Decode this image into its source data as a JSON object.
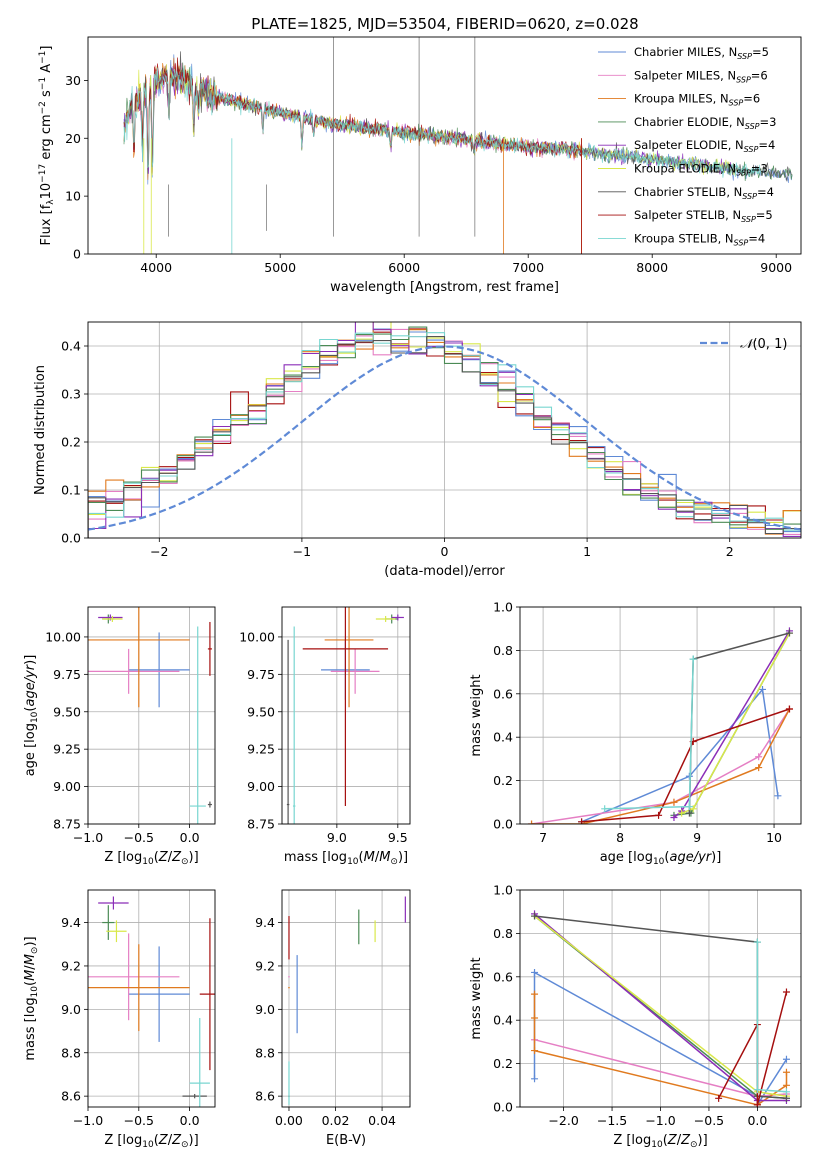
{
  "figure": {
    "title": "PLATE=1825, MJD=53504, FIBERID=0620, z=0.028"
  },
  "colors": {
    "Chabrier MILES": "#5f8ad6",
    "Salpeter MILES": "#e57fc4",
    "Kroupa MILES": "#e07a1f",
    "Chabrier ELODIE": "#4b8b55",
    "Salpeter ELODIE": "#8b2eb8",
    "Kroupa ELODIE": "#d9e84a",
    "Chabrier STELIB": "#555555",
    "Salpeter STELIB": "#a50f0f",
    "Kroupa STELIB": "#78d6d0",
    "normal": "#5f8ad6",
    "grid": "#b0b0b0"
  },
  "legend": [
    {
      "name": "Chabrier MILES",
      "nssp": "5"
    },
    {
      "name": "Salpeter MILES",
      "nssp": "6"
    },
    {
      "name": "Kroupa MILES",
      "nssp": "6"
    },
    {
      "name": "Chabrier ELODIE",
      "nssp": "3"
    },
    {
      "name": "Salpeter ELODIE",
      "nssp": "4"
    },
    {
      "name": "Kroupa ELODIE",
      "nssp": "3"
    },
    {
      "name": "Chabrier STELIB",
      "nssp": "4"
    },
    {
      "name": "Salpeter STELIB",
      "nssp": "5"
    },
    {
      "name": "Kroupa STELIB",
      "nssp": "4"
    }
  ],
  "chart_data": [
    {
      "id": "spectrum",
      "type": "line",
      "xlabel": "wavelength [Angstrom, rest frame]",
      "ylabel": "Flux [f_λ 10^-17 erg cm^-2 s^-1 A^-1]",
      "xlim": [
        3450,
        9200
      ],
      "ylim": [
        0,
        37.5
      ],
      "xticks": [
        4000,
        5000,
        6000,
        7000,
        8000,
        9000
      ],
      "yticks": [
        0,
        10,
        20,
        30
      ],
      "continuum_x": [
        3740,
        3800,
        3900,
        4000,
        4100,
        4200,
        4300,
        4400,
        4500,
        4600,
        4800,
        5000,
        5200,
        5400,
        5600,
        5800,
        6000,
        6200,
        6400,
        6600,
        6800,
        7000,
        7200,
        7400,
        7600,
        7800,
        8000,
        8200,
        8400,
        8600,
        8800,
        9000,
        9150
      ],
      "continuum_y": [
        22,
        26,
        28,
        30,
        31,
        30.5,
        29,
        28,
        27,
        26.5,
        25.5,
        24.5,
        23.5,
        22.5,
        22,
        21.5,
        21,
        20.5,
        20,
        19.5,
        19,
        18.5,
        18.3,
        18,
        17.3,
        16.8,
        16.3,
        15.8,
        15.3,
        14.8,
        14.3,
        13.8,
        13.5
      ]
    },
    {
      "id": "residuals",
      "type": "histogram",
      "xlabel": "(data-model)/error",
      "ylabel": "Normed distribution",
      "xlim": [
        -2.5,
        2.5
      ],
      "ylim": [
        0,
        0.45
      ],
      "xticks": [
        -2,
        -1,
        0,
        1,
        2
      ],
      "yticks": [
        0.0,
        0.1,
        0.2,
        0.3,
        0.4
      ],
      "legend": "N(0,1)",
      "bins": 40
    },
    {
      "id": "age_vs_Z",
      "type": "errorbar",
      "xlabel": "Z [log10(Z/Z⊙)]",
      "ylabel": "age [log10(age/yr)]",
      "xlim": [
        -1.0,
        0.25
      ],
      "ylim": [
        8.75,
        10.2
      ],
      "xticks": [
        -1.0,
        -0.5,
        0.0
      ],
      "yticks": [
        8.75,
        9.0,
        9.25,
        9.5,
        9.75,
        10.0
      ],
      "points": [
        {
          "series": "Chabrier MILES",
          "x": -0.3,
          "xerr": 0.3,
          "y": 9.78,
          "yerr": 0.25
        },
        {
          "series": "Salpeter MILES",
          "x": -0.6,
          "xerr": 0.5,
          "y": 9.77,
          "yerr": 0.15
        },
        {
          "series": "Kroupa MILES",
          "x": -0.5,
          "xerr": 0.5,
          "y": 9.98,
          "yerr": 0.45
        },
        {
          "series": "Chabrier ELODIE",
          "x": -0.8,
          "xerr": 0.06,
          "y": 10.12,
          "yerr": 0.03
        },
        {
          "series": "Salpeter ELODIE",
          "x": -0.78,
          "xerr": 0.12,
          "y": 10.13,
          "yerr": 0.02
        },
        {
          "series": "Kroupa ELODIE",
          "x": -0.76,
          "xerr": 0.1,
          "y": 10.12,
          "yerr": 0.02
        },
        {
          "series": "Chabrier STELIB",
          "x": 0.2,
          "xerr": 0.02,
          "y": 8.88,
          "yerr": 0.02
        },
        {
          "series": "Salpeter STELIB",
          "x": 0.2,
          "xerr": 0.02,
          "y": 9.92,
          "yerr": 0.18
        },
        {
          "series": "Kroupa STELIB",
          "x": 0.08,
          "xerr": 0.08,
          "y": 8.87,
          "yerr": 1.2
        }
      ]
    },
    {
      "id": "age_vs_mass",
      "type": "errorbar",
      "xlabel": "mass [log10(M/M⊙)]",
      "ylabel": "",
      "xlim": [
        8.55,
        9.6
      ],
      "ylim": [
        8.75,
        10.2
      ],
      "xticks": [
        9.0,
        9.5
      ],
      "yticks": [
        8.75,
        9.0,
        9.25,
        9.5,
        9.75,
        10.0
      ],
      "points": [
        {
          "series": "Chabrier MILES",
          "x": 9.07,
          "xerr": 0.2,
          "y": 9.78,
          "yerr": 0.2
        },
        {
          "series": "Salpeter MILES",
          "x": 9.15,
          "xerr": 0.2,
          "y": 9.77,
          "yerr": 0.15
        },
        {
          "series": "Kroupa MILES",
          "x": 9.1,
          "xerr": 0.2,
          "y": 9.98,
          "yerr": 0.45
        },
        {
          "series": "Chabrier ELODIE",
          "x": 9.45,
          "xerr": 0.05,
          "y": 10.12,
          "yerr": 0.03
        },
        {
          "series": "Salpeter ELODIE",
          "x": 9.5,
          "xerr": 0.05,
          "y": 10.13,
          "yerr": 0.02
        },
        {
          "series": "Kroupa ELODIE",
          "x": 9.4,
          "xerr": 0.08,
          "y": 10.12,
          "yerr": 0.02
        },
        {
          "series": "Chabrier STELIB",
          "x": 8.6,
          "xerr": 0.01,
          "y": 8.88,
          "yerr": 1.1
        },
        {
          "series": "Salpeter STELIB",
          "x": 9.07,
          "xerr": 0.35,
          "y": 9.92,
          "yerr": 1.05
        },
        {
          "series": "Kroupa STELIB",
          "x": 8.65,
          "xerr": 0.01,
          "y": 8.87,
          "yerr": 1.2
        }
      ]
    },
    {
      "id": "weight_vs_age",
      "type": "line",
      "xlabel": "age [log10(age/yr)]",
      "ylabel": "mass weight",
      "xlim": [
        6.7,
        10.35
      ],
      "ylim": [
        0,
        1.0
      ],
      "xticks": [
        7,
        8,
        9,
        10
      ],
      "yticks": [
        0.0,
        0.2,
        0.4,
        0.6,
        0.8,
        1.0
      ],
      "series": [
        {
          "name": "Chabrier MILES",
          "x": [
            7.5,
            8.9,
            9.85,
            10.05
          ],
          "y": [
            0.01,
            0.22,
            0.62,
            0.13
          ]
        },
        {
          "name": "Salpeter MILES",
          "x": [
            6.85,
            8.7,
            9.8,
            10.2
          ],
          "y": [
            0.0,
            0.1,
            0.31,
            0.53
          ]
        },
        {
          "name": "Kroupa MILES",
          "x": [
            6.85,
            7.5,
            8.7,
            9.8,
            10.2
          ],
          "y": [
            0.0,
            0.0,
            0.1,
            0.26,
            0.53
          ]
        },
        {
          "name": "Chabrier ELODIE",
          "x": [
            8.7,
            8.92,
            10.2
          ],
          "y": [
            0.04,
            0.05,
            0.88
          ]
        },
        {
          "name": "Salpeter ELODIE",
          "x": [
            8.7,
            8.8,
            10.2
          ],
          "y": [
            0.03,
            0.06,
            0.89
          ]
        },
        {
          "name": "Kroupa ELODIE",
          "x": [
            8.8,
            8.95,
            10.2
          ],
          "y": [
            0.05,
            0.07,
            0.88
          ]
        },
        {
          "name": "Chabrier STELIB",
          "x": [
            8.9,
            8.95,
            10.2
          ],
          "y": [
            0.05,
            0.76,
            0.88
          ]
        },
        {
          "name": "Salpeter STELIB",
          "x": [
            7.5,
            8.5,
            8.95,
            10.2
          ],
          "y": [
            0.01,
            0.04,
            0.38,
            0.53
          ]
        },
        {
          "name": "Kroupa STELIB",
          "x": [
            7.8,
            8.9,
            8.95,
            8.95
          ],
          "y": [
            0.07,
            0.08,
            0.76,
            0.76
          ]
        }
      ]
    },
    {
      "id": "mass_vs_Z",
      "type": "errorbar",
      "xlabel": "Z [log10(Z/Z⊙)]",
      "ylabel": "mass [log10(M/M⊙)]",
      "xlim": [
        -1.0,
        0.25
      ],
      "ylim": [
        8.55,
        9.55
      ],
      "xticks": [
        -1.0,
        -0.5,
        0.0
      ],
      "yticks": [
        8.6,
        8.8,
        9.0,
        9.2,
        9.4
      ],
      "points": [
        {
          "series": "Chabrier MILES",
          "x": -0.3,
          "xerr": 0.3,
          "y": 9.07,
          "yerr": 0.22
        },
        {
          "series": "Salpeter MILES",
          "x": -0.6,
          "xerr": 0.5,
          "y": 9.15,
          "yerr": 0.2
        },
        {
          "series": "Kroupa MILES",
          "x": -0.5,
          "xerr": 0.5,
          "y": 9.1,
          "yerr": 0.2
        },
        {
          "series": "Chabrier ELODIE",
          "x": -0.8,
          "xerr": 0.06,
          "y": 9.4,
          "yerr": 0.08
        },
        {
          "series": "Salpeter ELODIE",
          "x": -0.75,
          "xerr": 0.15,
          "y": 9.49,
          "yerr": 0.03
        },
        {
          "series": "Kroupa ELODIE",
          "x": -0.72,
          "xerr": 0.1,
          "y": 9.36,
          "yerr": 0.05
        },
        {
          "series": "Chabrier STELIB",
          "x": 0.05,
          "xerr": 0.12,
          "y": 8.6,
          "yerr": 0.01
        },
        {
          "series": "Salpeter STELIB",
          "x": 0.2,
          "xerr": 0.1,
          "y": 9.07,
          "yerr": 0.35
        },
        {
          "series": "Kroupa STELIB",
          "x": 0.1,
          "xerr": 0.1,
          "y": 8.66,
          "yerr": 0.3
        }
      ]
    },
    {
      "id": "mass_vs_EBV",
      "type": "errorbar",
      "xlabel": "E(B-V)",
      "ylabel": "",
      "xlim": [
        -0.003,
        0.052
      ],
      "ylim": [
        8.55,
        9.55
      ],
      "xticks": [
        0.0,
        0.02,
        0.04
      ],
      "yticks": [
        8.6,
        8.8,
        9.0,
        9.2,
        9.4
      ],
      "points": [
        {
          "series": "Chabrier MILES",
          "x": 0.0035,
          "y": 9.07,
          "yerr": 0.18
        },
        {
          "series": "Salpeter MILES",
          "x": 0.0,
          "y": 9.15,
          "yerr": 0.0
        },
        {
          "series": "Kroupa MILES",
          "x": 0.0,
          "y": 9.1,
          "yerr": 0.0
        },
        {
          "series": "Chabrier ELODIE",
          "x": 0.03,
          "y": 9.38,
          "yerr": 0.08
        },
        {
          "series": "Salpeter ELODIE",
          "x": 0.05,
          "y": 9.46,
          "yerr": 0.06
        },
        {
          "series": "Kroupa ELODIE",
          "x": 0.037,
          "y": 9.36,
          "yerr": 0.05
        },
        {
          "series": "Chabrier STELIB",
          "x": 0.0,
          "y": 8.6,
          "yerr": 0.0
        },
        {
          "series": "Salpeter STELIB",
          "x": 0.0,
          "y": 9.33,
          "yerr": 0.1
        },
        {
          "series": "Kroupa STELIB",
          "x": 0.0,
          "y": 8.66,
          "yerr": 0.1
        }
      ]
    },
    {
      "id": "weight_vs_Z",
      "type": "line",
      "xlabel": "Z [log10(Z/Z⊙)]",
      "ylabel": "mass weight",
      "xlim": [
        -2.45,
        0.45
      ],
      "ylim": [
        0,
        1.0
      ],
      "xticks": [
        -2.0,
        -1.5,
        -1.0,
        -0.5,
        0.0
      ],
      "yticks": [
        0.0,
        0.2,
        0.4,
        0.6,
        0.8,
        1.0
      ],
      "series": [
        {
          "name": "Chabrier MILES",
          "x": [
            -2.3,
            -2.3,
            0.0,
            0.0,
            0.3
          ],
          "y": [
            0.13,
            0.62,
            0.05,
            0.01,
            0.22
          ]
        },
        {
          "name": "Salpeter MILES",
          "x": [
            -2.3,
            0.0,
            0.3
          ],
          "y": [
            0.31,
            0.05,
            0.06
          ]
        },
        {
          "name": "Kroupa MILES",
          "x": [
            -2.3,
            -2.3,
            -2.3,
            0.0,
            0.3,
            0.3
          ],
          "y": [
            0.52,
            0.41,
            0.26,
            0.01,
            0.1,
            0.16
          ]
        },
        {
          "name": "Chabrier ELODIE",
          "x": [
            -2.3,
            0.0,
            0.3
          ],
          "y": [
            0.88,
            0.05,
            0.04
          ]
        },
        {
          "name": "Salpeter ELODIE",
          "x": [
            -2.3,
            0.0,
            0.3
          ],
          "y": [
            0.89,
            0.03,
            0.03
          ]
        },
        {
          "name": "Kroupa ELODIE",
          "x": [
            -2.3,
            0.0,
            0.3
          ],
          "y": [
            0.88,
            0.07,
            0.05
          ]
        },
        {
          "name": "Chabrier STELIB",
          "x": [
            -2.3,
            0.0,
            0.0,
            0.3
          ],
          "y": [
            0.88,
            0.76,
            0.05,
            0.04
          ]
        },
        {
          "name": "Salpeter STELIB",
          "x": [
            -0.4,
            0.0,
            0.0,
            0.3
          ],
          "y": [
            0.04,
            0.38,
            0.01,
            0.53
          ]
        },
        {
          "name": "Kroupa STELIB",
          "x": [
            0.0,
            0.0,
            0.3
          ],
          "y": [
            0.76,
            0.08,
            0.07
          ]
        }
      ]
    }
  ]
}
